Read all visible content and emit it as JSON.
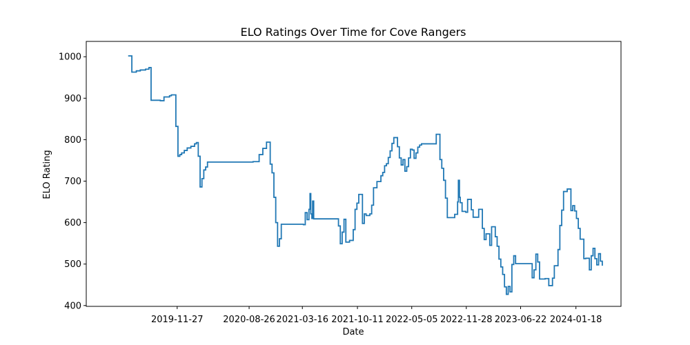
{
  "chart_data": {
    "type": "line",
    "title": "ELO Ratings Over Time for Cove Rangers",
    "xlabel": "Date",
    "ylabel": "ELO Rating",
    "x_axis_type": "date",
    "xlim": [
      "2018-12-17",
      "2024-07-07"
    ],
    "ylim": [
      398,
      1037
    ],
    "xticks": [
      "2019-11-27",
      "2020-08-26",
      "2021-03-16",
      "2021-10-11",
      "2022-05-05",
      "2022-11-28",
      "2023-06-22",
      "2024-01-18"
    ],
    "yticks": [
      400,
      500,
      600,
      700,
      800,
      900,
      1000
    ],
    "grid": false,
    "legend": "none",
    "series": [
      {
        "color": "#1f77b4",
        "step": true,
        "points": [
          [
            "2019-05-25",
            1002
          ],
          [
            "2019-06-08",
            963
          ],
          [
            "2019-06-25",
            966
          ],
          [
            "2019-07-10",
            968
          ],
          [
            "2019-07-30",
            970
          ],
          [
            "2019-08-12",
            974
          ],
          [
            "2019-08-20",
            895
          ],
          [
            "2019-09-24",
            894
          ],
          [
            "2019-10-08",
            903
          ],
          [
            "2019-10-29",
            906
          ],
          [
            "2019-11-05",
            908
          ],
          [
            "2019-11-22",
            832
          ],
          [
            "2019-11-30",
            760
          ],
          [
            "2019-12-07",
            764
          ],
          [
            "2019-12-14",
            768
          ],
          [
            "2019-12-24",
            774
          ],
          [
            "2020-01-04",
            780
          ],
          [
            "2020-01-18",
            784
          ],
          [
            "2020-02-01",
            790
          ],
          [
            "2020-02-08",
            793
          ],
          [
            "2020-02-15",
            760
          ],
          [
            "2020-02-22",
            686
          ],
          [
            "2020-02-29",
            706
          ],
          [
            "2020-03-07",
            727
          ],
          [
            "2020-03-14",
            734
          ],
          [
            "2020-03-21",
            746
          ],
          [
            "2020-09-10",
            747
          ],
          [
            "2020-10-03",
            764
          ],
          [
            "2020-10-17",
            779
          ],
          [
            "2020-10-31",
            794
          ],
          [
            "2020-11-14",
            741
          ],
          [
            "2020-11-21",
            720
          ],
          [
            "2020-11-28",
            661
          ],
          [
            "2020-12-05",
            600
          ],
          [
            "2020-12-12",
            543
          ],
          [
            "2020-12-19",
            561
          ],
          [
            "2020-12-26",
            596
          ],
          [
            "2021-03-20",
            595
          ],
          [
            "2021-03-27",
            624
          ],
          [
            "2021-04-03",
            607
          ],
          [
            "2021-04-10",
            632
          ],
          [
            "2021-04-14",
            670
          ],
          [
            "2021-04-17",
            621
          ],
          [
            "2021-04-21",
            610
          ],
          [
            "2021-04-24",
            652
          ],
          [
            "2021-04-28",
            609
          ],
          [
            "2021-07-31",
            592
          ],
          [
            "2021-08-07",
            549
          ],
          [
            "2021-08-14",
            577
          ],
          [
            "2021-08-21",
            608
          ],
          [
            "2021-08-28",
            553
          ],
          [
            "2021-09-11",
            557
          ],
          [
            "2021-09-25",
            583
          ],
          [
            "2021-10-02",
            632
          ],
          [
            "2021-10-09",
            647
          ],
          [
            "2021-10-16",
            668
          ],
          [
            "2021-10-30",
            598
          ],
          [
            "2021-11-06",
            621
          ],
          [
            "2021-11-13",
            617
          ],
          [
            "2021-11-27",
            621
          ],
          [
            "2021-12-04",
            642
          ],
          [
            "2021-12-11",
            684
          ],
          [
            "2021-12-24",
            699
          ],
          [
            "2022-01-08",
            713
          ],
          [
            "2022-01-15",
            721
          ],
          [
            "2022-01-22",
            737
          ],
          [
            "2022-01-29",
            742
          ],
          [
            "2022-02-05",
            757
          ],
          [
            "2022-02-12",
            773
          ],
          [
            "2022-02-19",
            791
          ],
          [
            "2022-02-26",
            805
          ],
          [
            "2022-03-12",
            783
          ],
          [
            "2022-03-19",
            756
          ],
          [
            "2022-03-26",
            739
          ],
          [
            "2022-04-02",
            752
          ],
          [
            "2022-04-09",
            724
          ],
          [
            "2022-04-16",
            735
          ],
          [
            "2022-04-23",
            756
          ],
          [
            "2022-04-30",
            777
          ],
          [
            "2022-05-07",
            775
          ],
          [
            "2022-05-14",
            755
          ],
          [
            "2022-05-21",
            768
          ],
          [
            "2022-05-28",
            782
          ],
          [
            "2022-06-04",
            787
          ],
          [
            "2022-06-11",
            790
          ],
          [
            "2022-08-06",
            813
          ],
          [
            "2022-08-20",
            752
          ],
          [
            "2022-08-27",
            731
          ],
          [
            "2022-09-03",
            702
          ],
          [
            "2022-09-10",
            659
          ],
          [
            "2022-09-17",
            612
          ],
          [
            "2022-10-15",
            620
          ],
          [
            "2022-10-26",
            650
          ],
          [
            "2022-10-29",
            702
          ],
          [
            "2022-11-02",
            661
          ],
          [
            "2022-11-05",
            648
          ],
          [
            "2022-11-12",
            627
          ],
          [
            "2022-11-26",
            625
          ],
          [
            "2022-12-03",
            656
          ],
          [
            "2022-12-17",
            631
          ],
          [
            "2022-12-24",
            613
          ],
          [
            "2023-01-14",
            632
          ],
          [
            "2023-01-28",
            586
          ],
          [
            "2023-02-04",
            559
          ],
          [
            "2023-02-11",
            573
          ],
          [
            "2023-02-25",
            545
          ],
          [
            "2023-03-04",
            590
          ],
          [
            "2023-03-18",
            566
          ],
          [
            "2023-03-25",
            543
          ],
          [
            "2023-04-01",
            512
          ],
          [
            "2023-04-08",
            493
          ],
          [
            "2023-04-15",
            475
          ],
          [
            "2023-04-22",
            445
          ],
          [
            "2023-04-29",
            427
          ],
          [
            "2023-05-06",
            446
          ],
          [
            "2023-05-13",
            433
          ],
          [
            "2023-05-20",
            499
          ],
          [
            "2023-05-27",
            520
          ],
          [
            "2023-06-03",
            501
          ],
          [
            "2023-08-05",
            467
          ],
          [
            "2023-08-12",
            486
          ],
          [
            "2023-08-19",
            524
          ],
          [
            "2023-08-26",
            505
          ],
          [
            "2023-09-02",
            464
          ],
          [
            "2023-09-23",
            465
          ],
          [
            "2023-10-07",
            448
          ],
          [
            "2023-10-21",
            466
          ],
          [
            "2023-10-28",
            496
          ],
          [
            "2023-11-11",
            535
          ],
          [
            "2023-11-18",
            593
          ],
          [
            "2023-11-25",
            630
          ],
          [
            "2023-12-02",
            675
          ],
          [
            "2023-12-16",
            681
          ],
          [
            "2023-12-30",
            629
          ],
          [
            "2024-01-06",
            641
          ],
          [
            "2024-01-13",
            628
          ],
          [
            "2024-01-20",
            610
          ],
          [
            "2024-01-27",
            586
          ],
          [
            "2024-02-03",
            560
          ],
          [
            "2024-02-17",
            513
          ],
          [
            "2024-02-24",
            514
          ],
          [
            "2024-03-09",
            486
          ],
          [
            "2024-03-16",
            520
          ],
          [
            "2024-03-23",
            538
          ],
          [
            "2024-03-30",
            513
          ],
          [
            "2024-04-06",
            498
          ],
          [
            "2024-04-13",
            525
          ],
          [
            "2024-04-20",
            507
          ],
          [
            "2024-04-27",
            496
          ]
        ]
      }
    ]
  }
}
